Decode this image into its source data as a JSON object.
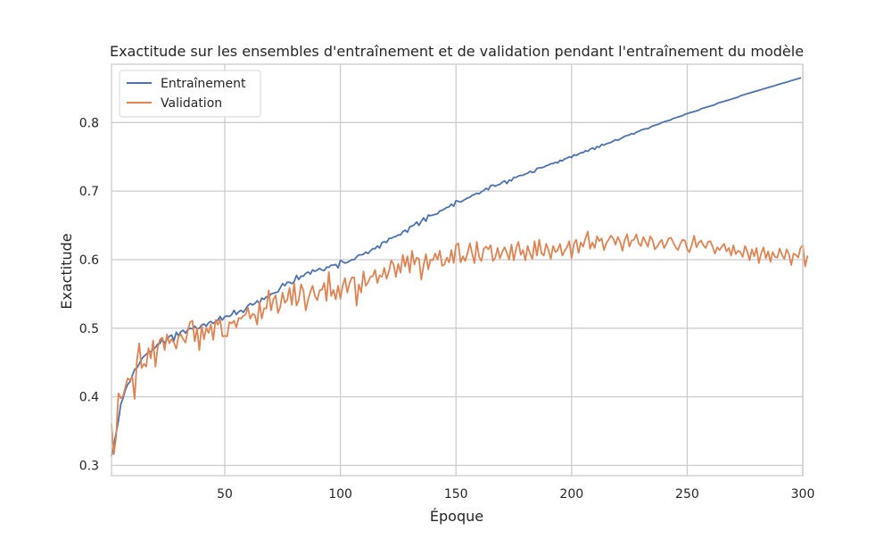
{
  "chart_data": {
    "type": "line",
    "title": "Exactitude sur les ensembles d'entraînement et de validation pendant l'entraînement du modèle",
    "xlabel": "Époque",
    "ylabel": "Exactitude",
    "xlim": [
      1,
      300
    ],
    "ylim": [
      0.285,
      0.885
    ],
    "x_ticks": [
      50,
      100,
      150,
      200,
      250,
      300
    ],
    "x_tick_labels": [
      "50",
      "100",
      "150",
      "200",
      "250",
      "300"
    ],
    "y_ticks": [
      0.3,
      0.4,
      0.5,
      0.6,
      0.7,
      0.8
    ],
    "y_tick_labels": [
      "0.3",
      "0.4",
      "0.5",
      "0.6",
      "0.7",
      "0.8"
    ],
    "grid": true,
    "legend_position": "top-left",
    "x_start": 1,
    "x_step": 1,
    "series": [
      {
        "name": "Entraînement",
        "color": "#4c72b0",
        "values": [
          0.314,
          0.33,
          0.347,
          0.365,
          0.389,
          0.398,
          0.41,
          0.418,
          0.422,
          0.431,
          0.44,
          0.442,
          0.448,
          0.455,
          0.459,
          0.462,
          0.465,
          0.466,
          0.469,
          0.472,
          0.477,
          0.478,
          0.484,
          0.478,
          0.484,
          0.488,
          0.49,
          0.482,
          0.494,
          0.489,
          0.495,
          0.497,
          0.493,
          0.498,
          0.5,
          0.499,
          0.503,
          0.499,
          0.5,
          0.505,
          0.506,
          0.503,
          0.508,
          0.51,
          0.507,
          0.51,
          0.512,
          0.517,
          0.512,
          0.517,
          0.518,
          0.517,
          0.52,
          0.526,
          0.52,
          0.524,
          0.526,
          0.523,
          0.528,
          0.533,
          0.536,
          0.534,
          0.536,
          0.54,
          0.536,
          0.544,
          0.542,
          0.546,
          0.545,
          0.55,
          0.551,
          0.552,
          0.553,
          0.559,
          0.565,
          0.562,
          0.567,
          0.567,
          0.565,
          0.568,
          0.577,
          0.571,
          0.576,
          0.576,
          0.58,
          0.582,
          0.579,
          0.585,
          0.583,
          0.585,
          0.587,
          0.585,
          0.584,
          0.589,
          0.589,
          0.592,
          0.592,
          0.593,
          0.588,
          0.599,
          0.597,
          0.595,
          0.596,
          0.598,
          0.6,
          0.6,
          0.604,
          0.607,
          0.607,
          0.608,
          0.611,
          0.609,
          0.613,
          0.616,
          0.616,
          0.62,
          0.617,
          0.625,
          0.626,
          0.625,
          0.631,
          0.631,
          0.633,
          0.634,
          0.636,
          0.636,
          0.641,
          0.643,
          0.64,
          0.648,
          0.649,
          0.651,
          0.655,
          0.65,
          0.656,
          0.661,
          0.656,
          0.665,
          0.664,
          0.665,
          0.666,
          0.667,
          0.671,
          0.672,
          0.674,
          0.676,
          0.677,
          0.681,
          0.678,
          0.686,
          0.685,
          0.684,
          0.686,
          0.688,
          0.69,
          0.691,
          0.694,
          0.695,
          0.697,
          0.696,
          0.699,
          0.701,
          0.704,
          0.702,
          0.708,
          0.709,
          0.707,
          0.709,
          0.71,
          0.713,
          0.715,
          0.711,
          0.716,
          0.715,
          0.72,
          0.72,
          0.722,
          0.723,
          0.723,
          0.725,
          0.726,
          0.729,
          0.727,
          0.728,
          0.733,
          0.734,
          0.734,
          0.735,
          0.737,
          0.738,
          0.74,
          0.74,
          0.742,
          0.741,
          0.745,
          0.744,
          0.747,
          0.748,
          0.75,
          0.749,
          0.753,
          0.752,
          0.754,
          0.756,
          0.756,
          0.759,
          0.758,
          0.761,
          0.763,
          0.761,
          0.765,
          0.764,
          0.768,
          0.767,
          0.769,
          0.77,
          0.771,
          0.773,
          0.775,
          0.774,
          0.776,
          0.778,
          0.78,
          0.781,
          0.782,
          0.784,
          0.783,
          0.786,
          0.787,
          0.789,
          0.79,
          0.791,
          0.791,
          0.793,
          0.795,
          0.796,
          0.797,
          0.798,
          0.8,
          0.801,
          0.802,
          0.803,
          0.804,
          0.806,
          0.807,
          0.808,
          0.809,
          0.81,
          0.812,
          0.813,
          0.814,
          0.815,
          0.816,
          0.817,
          0.818,
          0.82,
          0.821,
          0.822,
          0.823,
          0.824,
          0.825,
          0.826,
          0.828,
          0.829,
          0.83,
          0.831,
          0.832,
          0.833,
          0.834,
          0.835,
          0.836,
          0.837,
          0.839,
          0.84,
          0.841,
          0.842,
          0.843,
          0.844,
          0.845,
          0.846,
          0.847,
          0.848,
          0.849,
          0.85,
          0.851,
          0.852,
          0.853,
          0.854,
          0.855,
          0.856,
          0.857,
          0.858,
          0.859,
          0.86,
          0.861,
          0.862,
          0.863,
          0.864,
          0.865
        ]
      },
      {
        "name": "Validation",
        "color": "#dd8452",
        "values": [
          0.36,
          0.316,
          0.342,
          0.405,
          0.398,
          0.401,
          0.414,
          0.427,
          0.424,
          0.429,
          0.397,
          0.453,
          0.478,
          0.442,
          0.448,
          0.444,
          0.471,
          0.456,
          0.482,
          0.444,
          0.472,
          0.484,
          0.486,
          0.468,
          0.491,
          0.478,
          0.484,
          0.479,
          0.47,
          0.488,
          0.491,
          0.484,
          0.479,
          0.497,
          0.509,
          0.511,
          0.481,
          0.5,
          0.468,
          0.504,
          0.484,
          0.501,
          0.493,
          0.506,
          0.483,
          0.512,
          0.505,
          0.513,
          0.488,
          0.489,
          0.488,
          0.509,
          0.507,
          0.511,
          0.501,
          0.515,
          0.514,
          0.518,
          0.52,
          0.53,
          0.514,
          0.521,
          0.519,
          0.505,
          0.538,
          0.514,
          0.529,
          0.529,
          0.555,
          0.526,
          0.542,
          0.548,
          0.522,
          0.531,
          0.552,
          0.537,
          0.541,
          0.559,
          0.534,
          0.566,
          0.533,
          0.541,
          0.564,
          0.555,
          0.526,
          0.541,
          0.553,
          0.562,
          0.547,
          0.541,
          0.555,
          0.556,
          0.566,
          0.54,
          0.582,
          0.547,
          0.556,
          0.542,
          0.562,
          0.543,
          0.562,
          0.573,
          0.552,
          0.566,
          0.574,
          0.574,
          0.533,
          0.564,
          0.552,
          0.583,
          0.562,
          0.567,
          0.575,
          0.576,
          0.585,
          0.566,
          0.577,
          0.575,
          0.588,
          0.572,
          0.583,
          0.599,
          0.593,
          0.575,
          0.594,
          0.581,
          0.607,
          0.59,
          0.605,
          0.581,
          0.613,
          0.593,
          0.603,
          0.601,
          0.571,
          0.592,
          0.608,
          0.586,
          0.6,
          0.599,
          0.609,
          0.6,
          0.613,
          0.591,
          0.593,
          0.603,
          0.596,
          0.614,
          0.595,
          0.621,
          0.624,
          0.596,
          0.605,
          0.598,
          0.61,
          0.624,
          0.609,
          0.595,
          0.626,
          0.604,
          0.598,
          0.616,
          0.619,
          0.615,
          0.621,
          0.598,
          0.603,
          0.617,
          0.602,
          0.611,
          0.618,
          0.61,
          0.6,
          0.622,
          0.599,
          0.616,
          0.626,
          0.607,
          0.614,
          0.599,
          0.62,
          0.609,
          0.601,
          0.627,
          0.606,
          0.629,
          0.609,
          0.606,
          0.623,
          0.614,
          0.601,
          0.62,
          0.611,
          0.614,
          0.623,
          0.606,
          0.613,
          0.618,
          0.627,
          0.602,
          0.623,
          0.629,
          0.61,
          0.625,
          0.619,
          0.631,
          0.641,
          0.616,
          0.625,
          0.617,
          0.634,
          0.627,
          0.631,
          0.614,
          0.624,
          0.629,
          0.635,
          0.631,
          0.622,
          0.633,
          0.626,
          0.613,
          0.629,
          0.637,
          0.619,
          0.628,
          0.629,
          0.637,
          0.624,
          0.62,
          0.633,
          0.626,
          0.619,
          0.634,
          0.629,
          0.615,
          0.619,
          0.625,
          0.629,
          0.617,
          0.623,
          0.631,
          0.632,
          0.625,
          0.618,
          0.614,
          0.623,
          0.629,
          0.628,
          0.615,
          0.611,
          0.622,
          0.635,
          0.618,
          0.625,
          0.628,
          0.621,
          0.617,
          0.626,
          0.627,
          0.619,
          0.609,
          0.618,
          0.614,
          0.619,
          0.623,
          0.612,
          0.617,
          0.606,
          0.621,
          0.608,
          0.613,
          0.611,
          0.604,
          0.62,
          0.612,
          0.599,
          0.615,
          0.605,
          0.617,
          0.595,
          0.609,
          0.618,
          0.602,
          0.612,
          0.597,
          0.611,
          0.604,
          0.603,
          0.616,
          0.607,
          0.601,
          0.615,
          0.608,
          0.592,
          0.609,
          0.607,
          0.603,
          0.617,
          0.621,
          0.59,
          0.605
        ]
      }
    ]
  }
}
